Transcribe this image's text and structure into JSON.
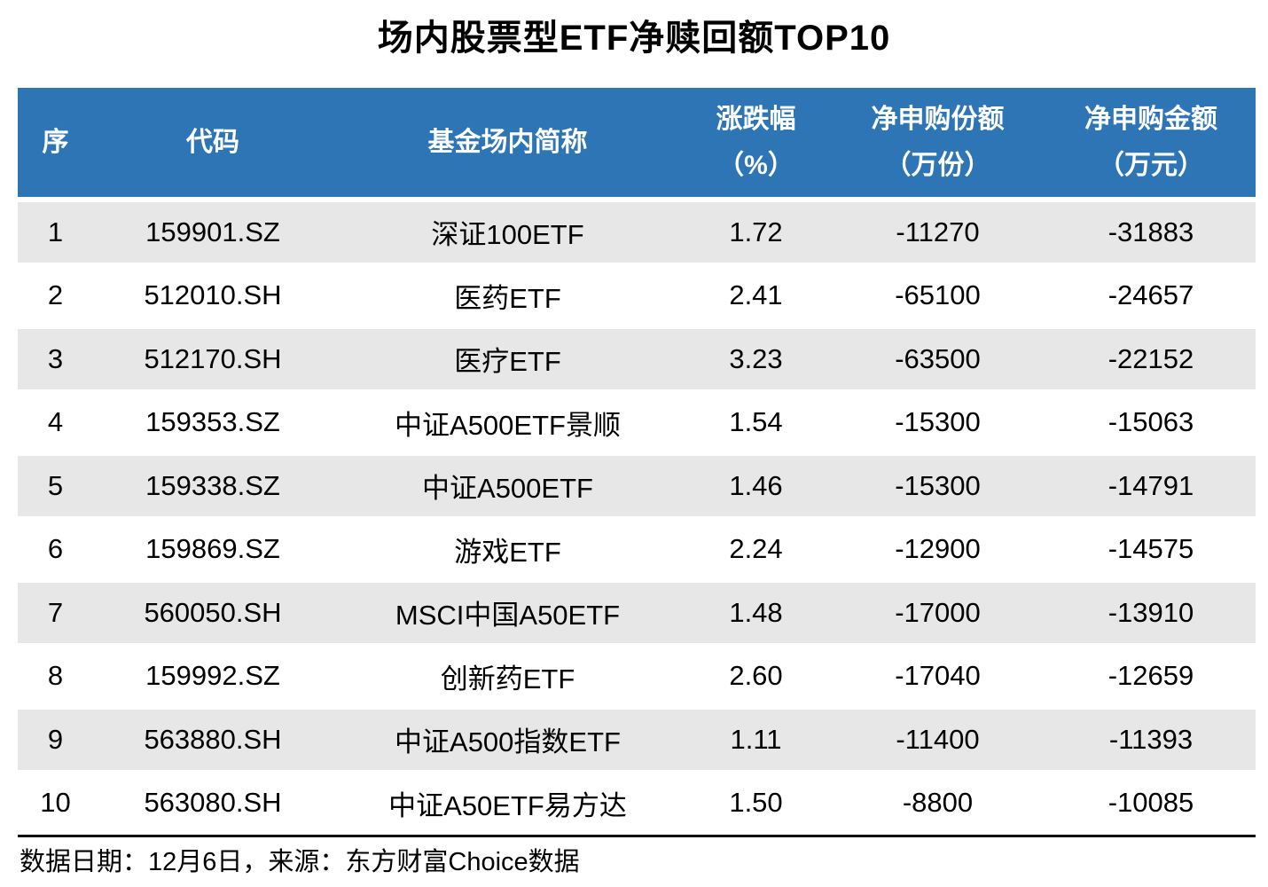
{
  "title": "场内股票型ETF净赎回额TOP10",
  "header": {
    "columns": [
      {
        "line1": "序",
        "line2": ""
      },
      {
        "line1": "代码",
        "line2": ""
      },
      {
        "line1": "基金场内简称",
        "line2": ""
      },
      {
        "line1": "涨跌幅",
        "line2": "（%）"
      },
      {
        "line1": "净申购份额",
        "line2": "（万份）"
      },
      {
        "line1": "净申购金额",
        "line2": "（万元）"
      }
    ]
  },
  "footer": {
    "note": "数据日期：12月6日，来源：东方财富Choice数据"
  },
  "colors": {
    "header_bg": "#2E75B6",
    "header_text": "#FFFFFF",
    "row_stripe": "#E7E7E7",
    "row_plain": "#FFFFFF",
    "body_text": "#000000",
    "divider": "#000000"
  },
  "chart_data": {
    "type": "table",
    "title": "场内股票型ETF净赎回额TOP10",
    "columns": [
      "序",
      "代码",
      "基金场内简称",
      "涨跌幅（%）",
      "净申购份额（万份）",
      "净申购金额（万元）"
    ],
    "rows": [
      [
        "1",
        "159901.SZ",
        "深证100ETF",
        "1.72",
        "-11270",
        "-31883"
      ],
      [
        "2",
        "512010.SH",
        "医药ETF",
        "2.41",
        "-65100",
        "-24657"
      ],
      [
        "3",
        "512170.SH",
        "医疗ETF",
        "3.23",
        "-63500",
        "-22152"
      ],
      [
        "4",
        "159353.SZ",
        "中证A500ETF景顺",
        "1.54",
        "-15300",
        "-15063"
      ],
      [
        "5",
        "159338.SZ",
        "中证A500ETF",
        "1.46",
        "-15300",
        "-14791"
      ],
      [
        "6",
        "159869.SZ",
        "游戏ETF",
        "2.24",
        "-12900",
        "-14575"
      ],
      [
        "7",
        "560050.SH",
        "MSCI中国A50ETF",
        "1.48",
        "-17000",
        "-13910"
      ],
      [
        "8",
        "159992.SZ",
        "创新药ETF",
        "2.60",
        "-17040",
        "-12659"
      ],
      [
        "9",
        "563880.SH",
        "中证A500指数ETF",
        "1.11",
        "-11400",
        "-11393"
      ],
      [
        "10",
        "563080.SH",
        "中证A50ETF易方达",
        "1.50",
        "-8800",
        "-10085"
      ]
    ],
    "source_note": "数据日期：12月6日，来源：东方财富Choice数据"
  }
}
